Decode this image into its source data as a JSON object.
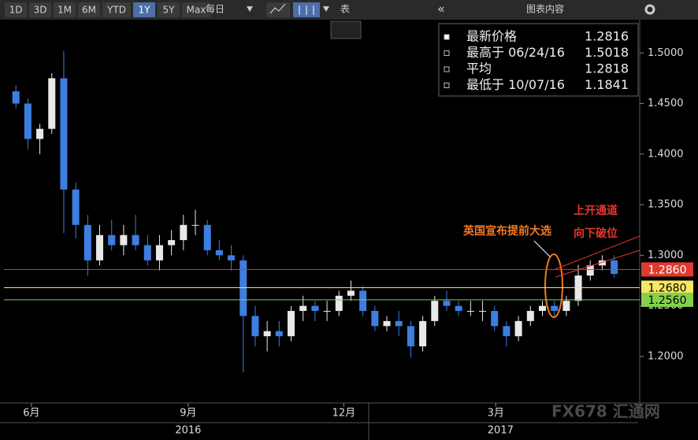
{
  "toolbar": {
    "ranges": [
      "1D",
      "3D",
      "1M",
      "6M",
      "YTD",
      "1Y",
      "5Y",
      "Max"
    ],
    "active": "1Y",
    "interval": "每日",
    "table": "表",
    "panel": "图表内容"
  },
  "watermark": "FX678 汇通网",
  "chart_data": {
    "type": "candlestick",
    "legend": [
      {
        "label": "最新价格",
        "value": 1.2816
      },
      {
        "label": "最高于 06/24/16",
        "value": 1.5018
      },
      {
        "label": "平均",
        "value": 1.2818
      },
      {
        "label": "最低于 10/07/16",
        "value": 1.1841
      }
    ],
    "up_color": "#e8e8e8",
    "down_color": "#3d7ee0",
    "ohlc": [
      [
        1.462,
        1.468,
        1.445,
        1.45
      ],
      [
        1.45,
        1.455,
        1.405,
        1.415
      ],
      [
        1.415,
        1.43,
        1.4,
        1.425
      ],
      [
        1.425,
        1.48,
        1.42,
        1.475
      ],
      [
        1.475,
        1.5018,
        1.322,
        1.365
      ],
      [
        1.365,
        1.372,
        1.317,
        1.33
      ],
      [
        1.33,
        1.34,
        1.28,
        1.295
      ],
      [
        1.295,
        1.33,
        1.29,
        1.32
      ],
      [
        1.32,
        1.335,
        1.305,
        1.31
      ],
      [
        1.31,
        1.33,
        1.3,
        1.32
      ],
      [
        1.32,
        1.34,
        1.305,
        1.31
      ],
      [
        1.31,
        1.32,
        1.29,
        1.295
      ],
      [
        1.295,
        1.32,
        1.285,
        1.31
      ],
      [
        1.31,
        1.325,
        1.3,
        1.315
      ],
      [
        1.315,
        1.34,
        1.305,
        1.33
      ],
      [
        1.33,
        1.345,
        1.32,
        1.33
      ],
      [
        1.33,
        1.335,
        1.3,
        1.305
      ],
      [
        1.305,
        1.315,
        1.295,
        1.3
      ],
      [
        1.3,
        1.31,
        1.285,
        1.295
      ],
      [
        1.295,
        1.3,
        1.1841,
        1.24
      ],
      [
        1.24,
        1.25,
        1.21,
        1.22
      ],
      [
        1.22,
        1.235,
        1.205,
        1.225
      ],
      [
        1.225,
        1.235,
        1.21,
        1.22
      ],
      [
        1.22,
        1.25,
        1.215,
        1.245
      ],
      [
        1.245,
        1.26,
        1.235,
        1.25
      ],
      [
        1.25,
        1.255,
        1.235,
        1.245
      ],
      [
        1.245,
        1.255,
        1.235,
        1.245
      ],
      [
        1.245,
        1.265,
        1.24,
        1.26
      ],
      [
        1.26,
        1.275,
        1.255,
        1.265
      ],
      [
        1.265,
        1.27,
        1.24,
        1.245
      ],
      [
        1.245,
        1.25,
        1.225,
        1.23
      ],
      [
        1.23,
        1.24,
        1.225,
        1.235
      ],
      [
        1.235,
        1.245,
        1.22,
        1.23
      ],
      [
        1.23,
        1.235,
        1.199,
        1.21
      ],
      [
        1.21,
        1.24,
        1.205,
        1.235
      ],
      [
        1.235,
        1.26,
        1.23,
        1.255
      ],
      [
        1.255,
        1.265,
        1.245,
        1.25
      ],
      [
        1.25,
        1.255,
        1.24,
        1.245
      ],
      [
        1.245,
        1.255,
        1.24,
        1.245
      ],
      [
        1.245,
        1.255,
        1.235,
        1.245
      ],
      [
        1.245,
        1.25,
        1.225,
        1.23
      ],
      [
        1.23,
        1.235,
        1.21,
        1.22
      ],
      [
        1.22,
        1.24,
        1.215,
        1.235
      ],
      [
        1.235,
        1.25,
        1.23,
        1.245
      ],
      [
        1.245,
        1.255,
        1.24,
        1.25
      ],
      [
        1.25,
        1.255,
        1.24,
        1.245
      ],
      [
        1.245,
        1.26,
        1.24,
        1.255
      ],
      [
        1.255,
        1.2905,
        1.25,
        1.28
      ],
      [
        1.28,
        1.295,
        1.275,
        1.29
      ],
      [
        1.29,
        1.3,
        1.285,
        1.295
      ],
      [
        1.295,
        1.3,
        1.278,
        1.2816
      ]
    ],
    "xlim": [
      -1,
      52
    ],
    "xticks": [
      {
        "value": 1.3,
        "label": "6月"
      },
      {
        "value": 14.4,
        "label": "9月"
      },
      {
        "value": 27.4,
        "label": "12月"
      },
      {
        "value": 40.1,
        "label": "3月"
      }
    ],
    "years": [
      {
        "value": 14.4,
        "label": "2016"
      },
      {
        "value": 40.5,
        "label": "2017"
      }
    ],
    "ylim": [
      1.154,
      1.529
    ],
    "yticks": [
      {
        "value": 1.5,
        "label": "1.5000"
      },
      {
        "value": 1.45,
        "label": "1.4500"
      },
      {
        "value": 1.4,
        "label": "1.4000"
      },
      {
        "value": 1.35,
        "label": "1.3500"
      },
      {
        "value": 1.3,
        "label": "1.3000"
      },
      {
        "value": 1.25,
        "label": "1.2500"
      },
      {
        "value": 1.2,
        "label": "1.2000"
      }
    ],
    "hlines": [
      {
        "value": 1.286,
        "label": "1.2860",
        "color": "#e03a30",
        "text_color": "#ffffff"
      },
      {
        "value": 1.268,
        "label": "1.2680",
        "color": "#f5e663",
        "text_color": "#000000"
      },
      {
        "value": 1.256,
        "label": "1.2560",
        "color": "#84d24c",
        "text_color": "#000000"
      }
    ],
    "annotations": [
      {
        "text": "英国宣布提前大选",
        "color": "#f47a20"
      },
      {
        "text": "上开通道",
        "color": "#e8352e"
      },
      {
        "text": "向下破位",
        "color": "#e8352e"
      }
    ]
  }
}
